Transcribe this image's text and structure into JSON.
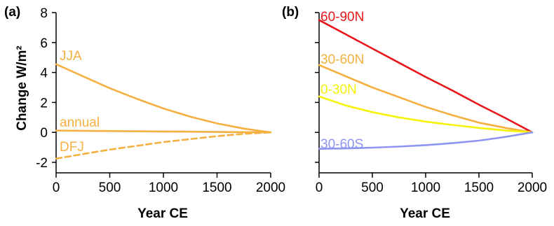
{
  "chart_data": [
    {
      "panel": "(a)",
      "type": "line",
      "ylabel": "Change W/m²",
      "xlabel": "Year CE",
      "xlim": [
        0,
        2000
      ],
      "ylim": [
        -2,
        8
      ],
      "xticks": [
        0,
        500,
        1000,
        1500,
        2000
      ],
      "yticks": [
        -2,
        0,
        2,
        4,
        6,
        8
      ],
      "series": [
        {
          "name": "JJA",
          "color": "#f5b041",
          "style": "solid",
          "x": [
            0,
            250,
            500,
            750,
            1000,
            1250,
            1500,
            1750,
            2000
          ],
          "y": [
            4.55,
            3.75,
            2.95,
            2.25,
            1.6,
            1.05,
            0.6,
            0.25,
            0.0
          ]
        },
        {
          "name": "annual",
          "color": "#f5b041",
          "style": "solid",
          "x": [
            0,
            500,
            1000,
            1500,
            2000
          ],
          "y": [
            0.12,
            0.09,
            0.06,
            0.03,
            0.0
          ]
        },
        {
          "name": "DFJ",
          "color": "#f5b041",
          "style": "dashed",
          "x": [
            0,
            250,
            500,
            750,
            1000,
            1250,
            1500,
            1750,
            2000
          ],
          "y": [
            -1.75,
            -1.45,
            -1.15,
            -0.9,
            -0.65,
            -0.45,
            -0.25,
            -0.1,
            0.0
          ]
        }
      ]
    },
    {
      "panel": "(b)",
      "type": "line",
      "xlabel": "Year CE",
      "xlim": [
        0,
        2000
      ],
      "ylim": [
        -2,
        8
      ],
      "xticks": [
        0,
        500,
        1000,
        1500,
        2000
      ],
      "series": [
        {
          "name": "60-90N",
          "color": "#e8161b",
          "style": "solid",
          "x": [
            0,
            250,
            500,
            750,
            1000,
            1250,
            1500,
            1750,
            2000
          ],
          "y": [
            7.5,
            6.55,
            5.6,
            4.65,
            3.7,
            2.8,
            1.85,
            0.95,
            0.0
          ]
        },
        {
          "name": "30-60N",
          "color": "#f5b041",
          "style": "solid",
          "x": [
            0,
            250,
            500,
            750,
            1000,
            1250,
            1500,
            1750,
            2000
          ],
          "y": [
            4.5,
            3.75,
            3.0,
            2.35,
            1.7,
            1.15,
            0.65,
            0.3,
            0.0
          ]
        },
        {
          "name": "0-30N",
          "color": "#f5f20a",
          "style": "solid",
          "x": [
            0,
            250,
            500,
            750,
            1000,
            1250,
            1500,
            1750,
            2000
          ],
          "y": [
            2.4,
            1.8,
            1.35,
            1.0,
            0.72,
            0.5,
            0.3,
            0.13,
            0.0
          ]
        },
        {
          "name": "30-60S",
          "color": "#8c96f0",
          "style": "solid",
          "x": [
            0,
            250,
            500,
            750,
            1000,
            1250,
            1500,
            1750,
            2000
          ],
          "y": [
            -1.1,
            -1.07,
            -1.02,
            -0.95,
            -0.85,
            -0.72,
            -0.55,
            -0.3,
            0.0
          ]
        }
      ]
    }
  ]
}
